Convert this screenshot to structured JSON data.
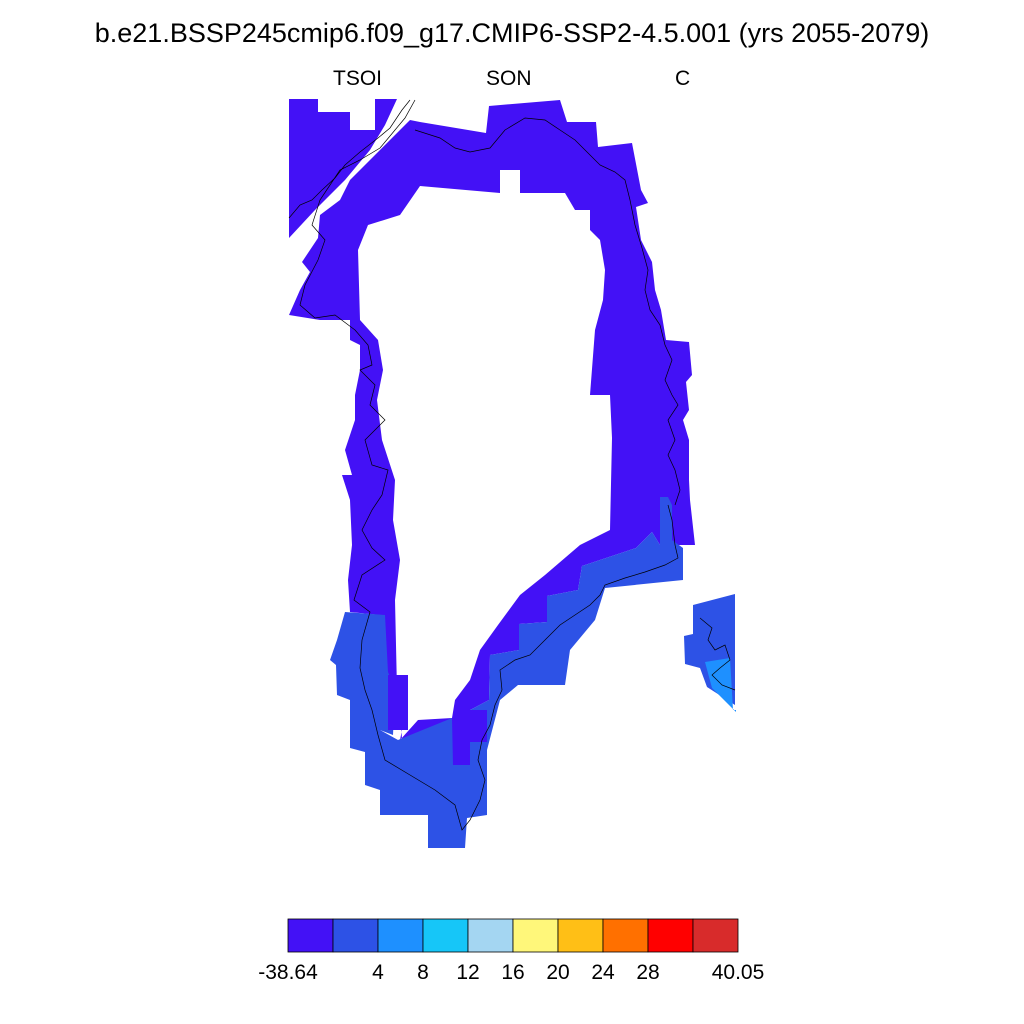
{
  "title": "b.e21.BSSP245cmip6.f09_g17.CMIP6-SSP2-4.5.001 (yrs 2055-2079)",
  "subtitles": {
    "left": "TSOI",
    "center": "SON",
    "right": "C"
  },
  "colorbar": {
    "colors": [
      "#4311f6",
      "#2d52e6",
      "#1e90ff",
      "#16c6f8",
      "#a4d6f2",
      "#fff77a",
      "#ffbf16",
      "#ff7000",
      "#ff0000",
      "#d82b2b"
    ],
    "labels": [
      "-38.64",
      "4",
      "8",
      "12",
      "16",
      "20",
      "24",
      "28",
      "40.05"
    ]
  },
  "map": {
    "fill_colors": {
      "cold": "#4311f6",
      "cool": "#2d52e6",
      "mild": "#1e90ff"
    },
    "coastline_color": "#000000"
  }
}
